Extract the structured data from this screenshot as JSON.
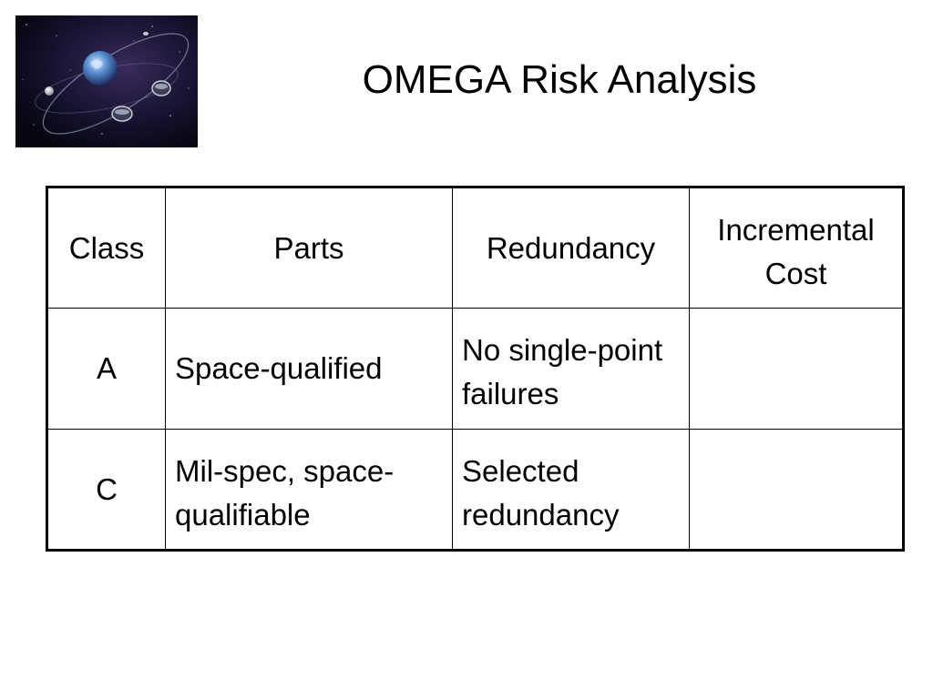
{
  "slide": {
    "title": "OMEGA Risk Analysis",
    "image_alt": "satellites orbiting Earth"
  },
  "table": {
    "headers": {
      "class": "Class",
      "parts": "Parts",
      "redundancy": "Redundancy",
      "incremental_cost": "Incremental Cost"
    },
    "rows": [
      {
        "class": "A",
        "parts": "Space-qualified",
        "redundancy": "No single-point failures",
        "incremental_cost": ""
      },
      {
        "class": "C",
        "parts": "Mil-spec, space-qualifiable",
        "redundancy": "Selected redundancy",
        "incremental_cost": ""
      }
    ]
  }
}
